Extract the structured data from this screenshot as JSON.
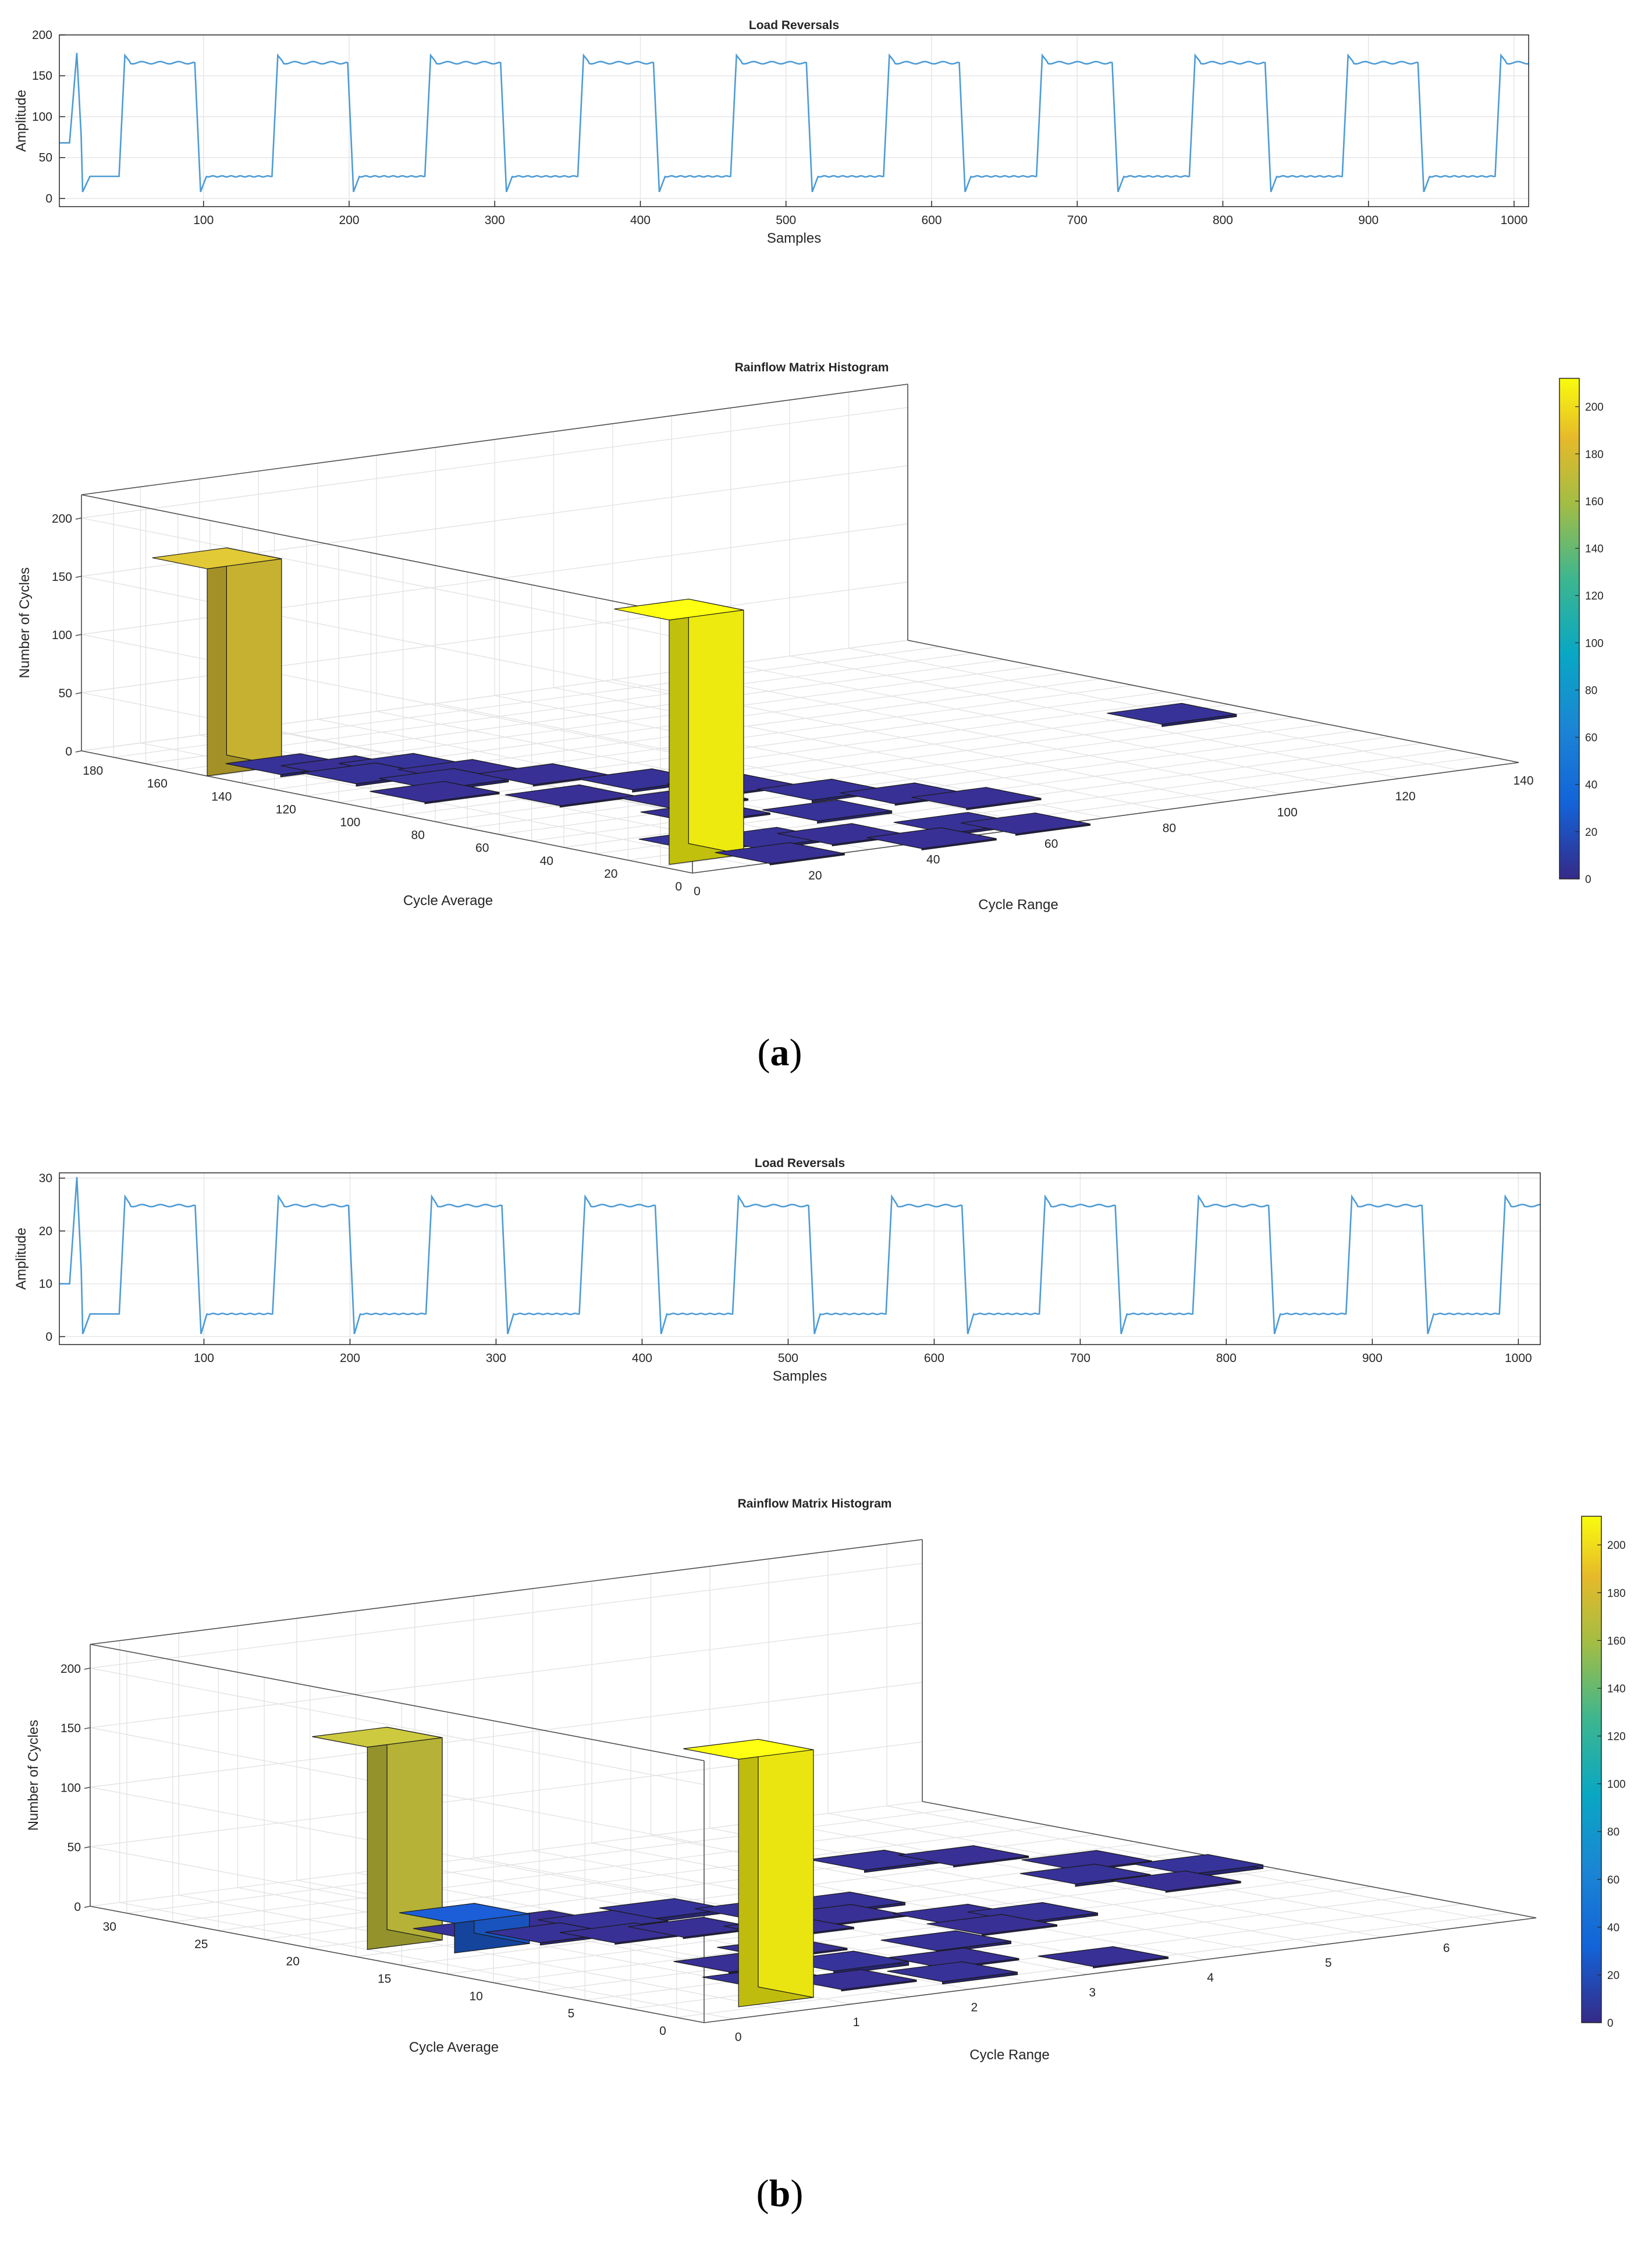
{
  "figure": {
    "captions": [
      "(a)",
      "(b)"
    ],
    "caption_letters": [
      "a",
      "b"
    ]
  },
  "chart_data": [
    {
      "id": "a-top",
      "type": "line",
      "title": "Load Reversals",
      "xlabel": "Samples",
      "ylabel": "Amplitude",
      "xlim": [
        1,
        1010
      ],
      "ylim": [
        -10,
        200
      ],
      "xticks": [
        100,
        200,
        300,
        400,
        500,
        600,
        700,
        800,
        900,
        1000
      ],
      "yticks": [
        0,
        50,
        100,
        150,
        200
      ],
      "color": "#4d9bd6",
      "series_description": "square wave, period about 105 samples",
      "high_level": 166,
      "low_level": 27,
      "first_peak": 178,
      "overshoot": 175,
      "undershoot": 8,
      "start_level": 68,
      "first_high_sample": 47,
      "high_duration": 52,
      "period": 105
    },
    {
      "id": "a-bottom",
      "type": "bar3d",
      "title": "Rainflow Matrix Histogram",
      "xlabel": "Cycle Range",
      "ylabel": "Cycle Average",
      "zlabel": "Number of Cycles",
      "range_ticks": [
        0,
        20,
        40,
        60,
        80,
        100,
        120,
        140
      ],
      "average_ticks": [
        0,
        20,
        40,
        60,
        80,
        100,
        120,
        140,
        160,
        180
      ],
      "z_ticks": [
        0,
        50,
        100,
        150,
        200
      ],
      "range_lim": [
        0,
        140
      ],
      "average_lim": [
        0,
        190
      ],
      "z_lim": [
        0,
        220
      ],
      "colorbar": {
        "min": 0,
        "max": 212,
        "ticks": [
          0,
          20,
          40,
          60,
          80,
          100,
          120,
          140,
          160,
          180,
          200
        ]
      },
      "bars": [
        {
          "range": 0,
          "average": 168,
          "count": 178
        },
        {
          "range": 2,
          "average": 28,
          "count": 210
        },
        {
          "range": 7,
          "average": 158,
          "count": 2
        },
        {
          "range": 12,
          "average": 150,
          "count": 1
        },
        {
          "range": 18,
          "average": 143,
          "count": 3
        },
        {
          "range": 10,
          "average": 140,
          "count": 2
        },
        {
          "range": 22,
          "average": 132,
          "count": 1
        },
        {
          "range": 15,
          "average": 125,
          "count": 2
        },
        {
          "range": 28,
          "average": 118,
          "count": 1
        },
        {
          "range": 8,
          "average": 115,
          "count": 1
        },
        {
          "range": 35,
          "average": 100,
          "count": 2
        },
        {
          "range": 20,
          "average": 95,
          "count": 1
        },
        {
          "range": 42,
          "average": 85,
          "count": 1
        },
        {
          "range": 30,
          "average": 78,
          "count": 1
        },
        {
          "range": 48,
          "average": 68,
          "count": 2
        },
        {
          "range": 25,
          "average": 62,
          "count": 1
        },
        {
          "range": 55,
          "average": 55,
          "count": 1
        },
        {
          "range": 38,
          "average": 48,
          "count": 2
        },
        {
          "range": 60,
          "average": 42,
          "count": 1
        },
        {
          "range": 10,
          "average": 35,
          "count": 3
        },
        {
          "range": 18,
          "average": 30,
          "count": 2
        },
        {
          "range": 28,
          "average": 25,
          "count": 1
        },
        {
          "range": 45,
          "average": 20,
          "count": 2
        },
        {
          "range": 12,
          "average": 15,
          "count": 1
        },
        {
          "range": 35,
          "average": 10,
          "count": 1
        },
        {
          "range": 52,
          "average": 12,
          "count": 1
        },
        {
          "range": 122,
          "average": 95,
          "count": 2
        }
      ]
    },
    {
      "id": "b-top",
      "type": "line",
      "title": "Load Reversals",
      "xlabel": "Samples",
      "ylabel": "Amplitude",
      "xlim": [
        1,
        1015
      ],
      "ylim": [
        -1.5,
        31
      ],
      "xticks": [
        100,
        200,
        300,
        400,
        500,
        600,
        700,
        800,
        900,
        1000
      ],
      "yticks": [
        0,
        10,
        20,
        30
      ],
      "color": "#4d9bd6",
      "series_description": "square wave, period about 105 samples",
      "high_level": 24.8,
      "low_level": 4.3,
      "first_peak": 30.2,
      "overshoot": 26.5,
      "undershoot": 0.5,
      "start_level": 10,
      "first_high_sample": 47,
      "high_duration": 52,
      "period": 105
    },
    {
      "id": "b-bottom",
      "type": "bar3d",
      "title": "Rainflow Matrix Histogram",
      "xlabel": "Cycle Range",
      "ylabel": "Cycle Average",
      "zlabel": "Number of Cycles",
      "range_ticks": [
        0,
        1,
        2,
        3,
        4,
        5,
        6
      ],
      "average_ticks": [
        0,
        5,
        10,
        15,
        20,
        25,
        30
      ],
      "z_ticks": [
        0,
        50,
        100,
        150,
        200
      ],
      "range_lim": [
        -0.25,
        6.8
      ],
      "average_lim": [
        -1.5,
        32
      ],
      "z_lim": [
        0,
        220
      ],
      "colorbar": {
        "min": 0,
        "max": 212,
        "ticks": [
          0,
          20,
          40,
          60,
          80,
          100,
          120,
          140,
          160,
          180,
          200
        ]
      },
      "bars": [
        {
          "range": 0.0,
          "average": 21.5,
          "count": 170
        },
        {
          "range": 0.35,
          "average": 3.5,
          "count": 208
        },
        {
          "range": 0.35,
          "average": 19.0,
          "count": 25
        },
        {
          "range": 0.7,
          "average": 20.5,
          "count": 3
        },
        {
          "range": 1.0,
          "average": 18.5,
          "count": 2
        },
        {
          "range": 1.3,
          "average": 21.0,
          "count": 1
        },
        {
          "range": 1.4,
          "average": 17.0,
          "count": 1
        },
        {
          "range": 1.6,
          "average": 19.5,
          "count": 2
        },
        {
          "range": 1.9,
          "average": 16.5,
          "count": 1
        },
        {
          "range": 2.2,
          "average": 20.0,
          "count": 3
        },
        {
          "range": 2.4,
          "average": 14.5,
          "count": 1
        },
        {
          "range": 2.7,
          "average": 18.0,
          "count": 2
        },
        {
          "range": 3.0,
          "average": 15.5,
          "count": 1
        },
        {
          "range": 3.3,
          "average": 17.5,
          "count": 2
        },
        {
          "range": 3.6,
          "average": 13.0,
          "count": 1
        },
        {
          "range": 4.6,
          "average": 24.0,
          "count": 2
        },
        {
          "range": 5.2,
          "average": 23.0,
          "count": 1
        },
        {
          "range": 5.3,
          "average": 17.0,
          "count": 2
        },
        {
          "range": 5.6,
          "average": 14.0,
          "count": 1
        },
        {
          "range": 5.7,
          "average": 19.5,
          "count": 1
        },
        {
          "range": 6.1,
          "average": 16.0,
          "count": 3
        },
        {
          "range": 0.9,
          "average": 6.0,
          "count": 2
        },
        {
          "range": 1.3,
          "average": 4.0,
          "count": 1
        },
        {
          "range": 1.7,
          "average": 7.0,
          "count": 3
        },
        {
          "range": 2.0,
          "average": 3.0,
          "count": 2
        },
        {
          "range": 2.4,
          "average": 5.5,
          "count": 1
        },
        {
          "range": 2.8,
          "average": 8.5,
          "count": 2
        },
        {
          "range": 3.2,
          "average": 2.5,
          "count": 1
        },
        {
          "range": 3.5,
          "average": 10.5,
          "count": 1
        },
        {
          "range": 4.0,
          "average": 11.5,
          "count": 2
        },
        {
          "range": 1.2,
          "average": 9.5,
          "count": 1
        },
        {
          "range": 1.8,
          "average": 11.0,
          "count": 1
        }
      ]
    }
  ]
}
